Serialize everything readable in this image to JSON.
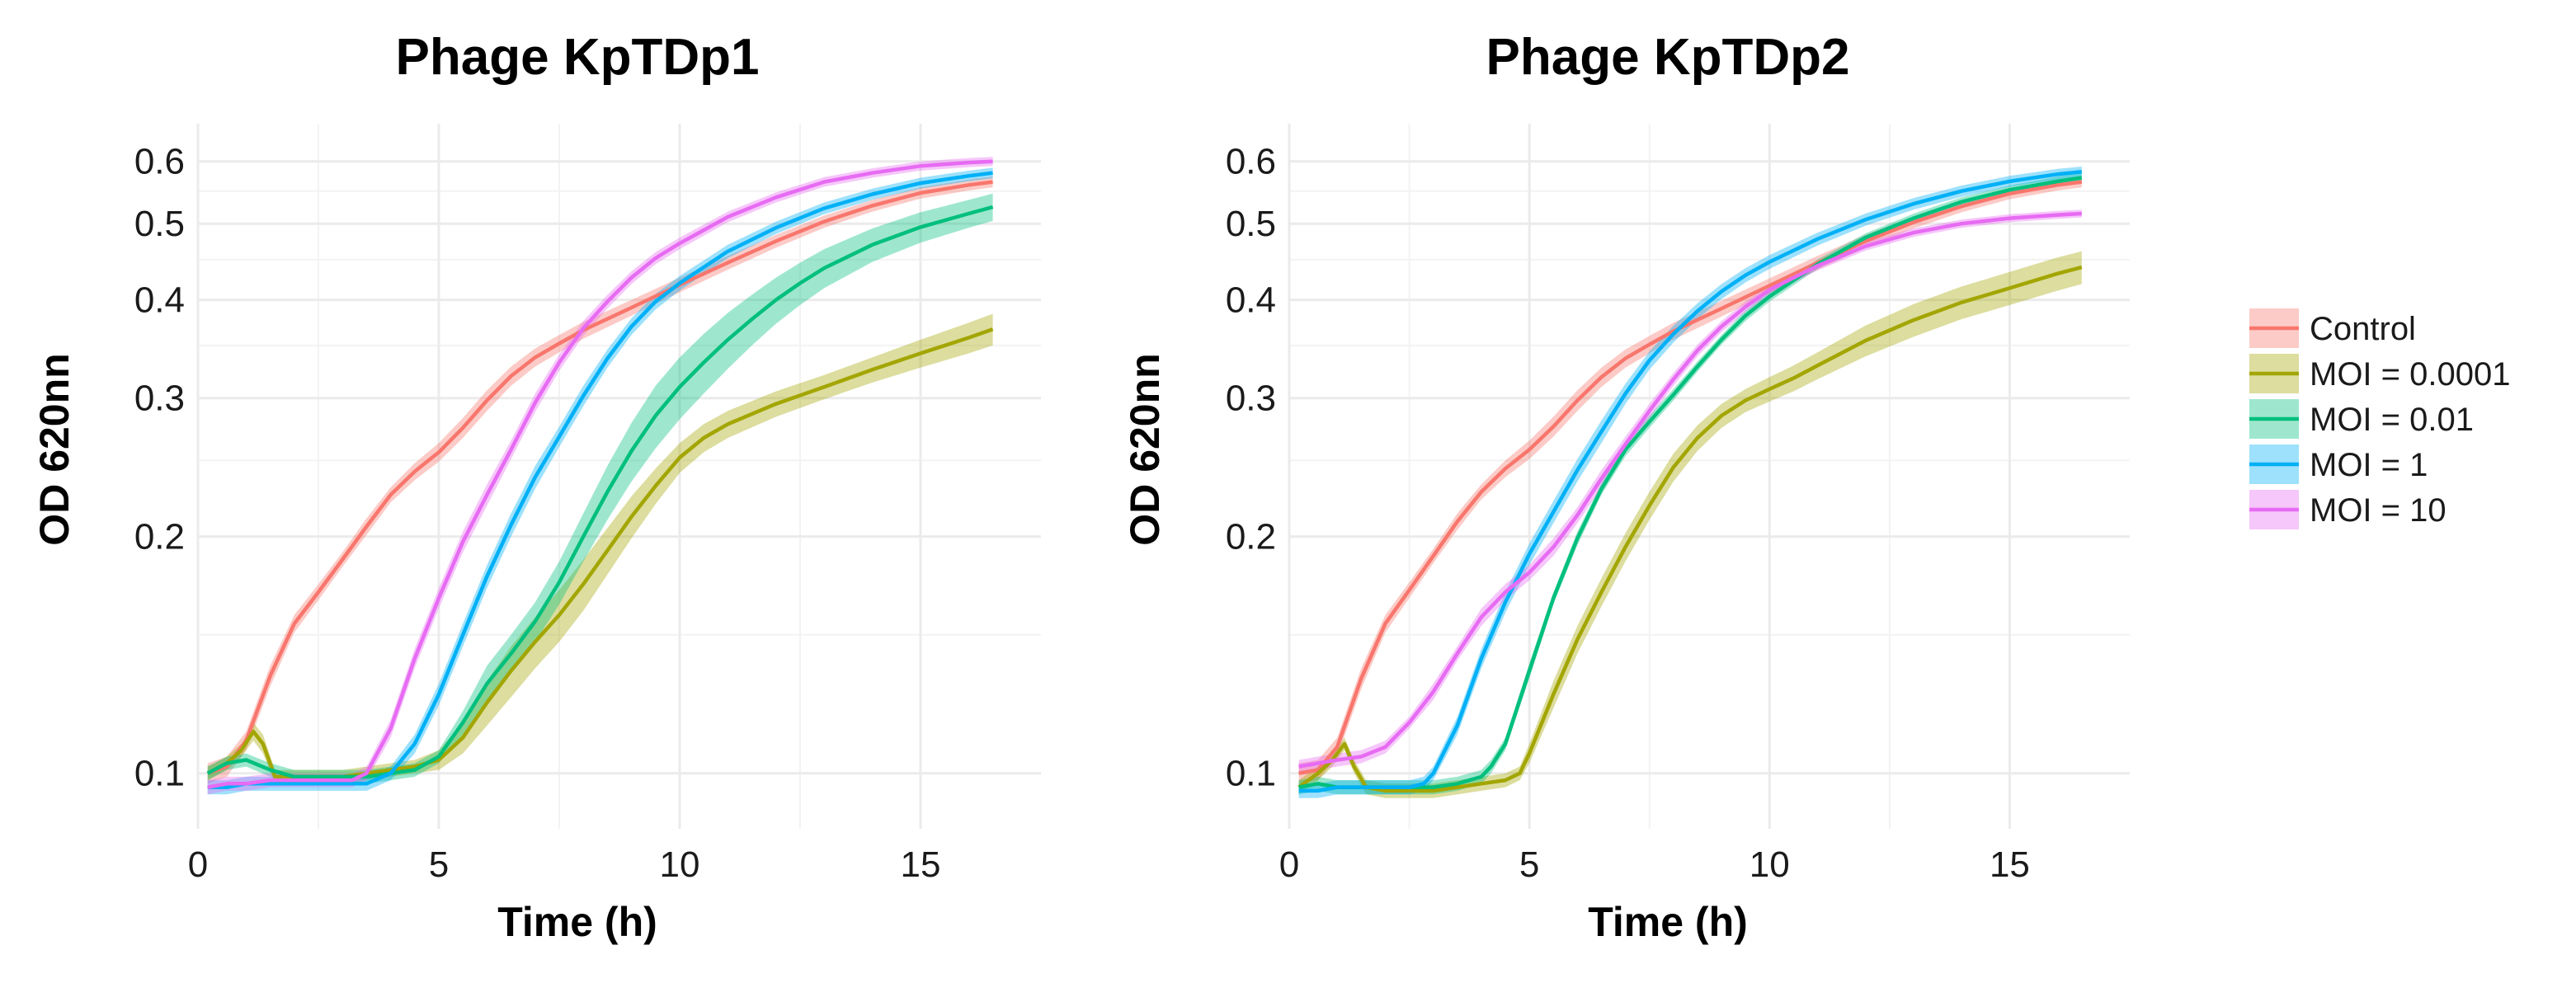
{
  "chart_data": [
    {
      "type": "line",
      "title": "Phage KpTDp1",
      "xlabel": "Time (h)",
      "ylabel": "OD 620nn",
      "xlim": [
        0,
        17.5
      ],
      "ylim": [
        0.085,
        0.67
      ],
      "y_scale": "log",
      "x_ticks": [
        "0",
        "5",
        "10",
        "15"
      ],
      "y_ticks": [
        "0.1",
        "0.2",
        "0.3",
        "0.4",
        "0.5",
        "0.6"
      ],
      "series": [
        {
          "name": "Control",
          "color": "#F8766D",
          "x": [
            0.2,
            0.6,
            1,
            1.5,
            2,
            2.5,
            3,
            3.5,
            4,
            4.5,
            5,
            5.5,
            6,
            6.5,
            7,
            7.5,
            8,
            9,
            10,
            11,
            12,
            13,
            14,
            15,
            16,
            16.5
          ],
          "y": [
            0.1,
            0.102,
            0.11,
            0.133,
            0.155,
            0.17,
            0.187,
            0.206,
            0.226,
            0.242,
            0.256,
            0.275,
            0.298,
            0.32,
            0.338,
            0.352,
            0.366,
            0.391,
            0.418,
            0.446,
            0.475,
            0.503,
            0.527,
            0.547,
            0.56,
            0.565
          ],
          "band": [
            0.003,
            0.003,
            0.003,
            0.004,
            0.004,
            0.004,
            0.004,
            0.005,
            0.005,
            0.006,
            0.007,
            0.008,
            0.009,
            0.009,
            0.009,
            0.009,
            0.009,
            0.009,
            0.009,
            0.009,
            0.009,
            0.009,
            0.009,
            0.009,
            0.009,
            0.009
          ]
        },
        {
          "name": "MOI = 0.0001",
          "color": "#A3A500",
          "x": [
            0.2,
            0.6,
            0.9,
            1.15,
            1.35,
            1.6,
            2,
            2.5,
            3,
            3.5,
            4,
            4.5,
            5,
            5.5,
            6,
            6.5,
            7,
            7.5,
            8,
            8.5,
            9,
            9.5,
            10,
            10.5,
            11,
            12,
            13,
            14,
            15,
            16,
            16.5
          ],
          "y": [
            0.1,
            0.103,
            0.107,
            0.113,
            0.109,
            0.099,
            0.099,
            0.099,
            0.099,
            0.1,
            0.101,
            0.102,
            0.104,
            0.111,
            0.123,
            0.135,
            0.147,
            0.159,
            0.174,
            0.192,
            0.212,
            0.232,
            0.252,
            0.267,
            0.278,
            0.295,
            0.31,
            0.326,
            0.342,
            0.358,
            0.367
          ],
          "band": [
            0.002,
            0.002,
            0.002,
            0.003,
            0.003,
            0.002,
            0.002,
            0.002,
            0.002,
            0.002,
            0.002,
            0.002,
            0.003,
            0.005,
            0.008,
            0.01,
            0.011,
            0.012,
            0.013,
            0.013,
            0.013,
            0.012,
            0.011,
            0.011,
            0.011,
            0.011,
            0.011,
            0.012,
            0.014,
            0.016,
            0.017
          ]
        },
        {
          "name": "MOI = 0.01",
          "color": "#00BF7D",
          "x": [
            0.2,
            0.6,
            1,
            1.5,
            2,
            2.5,
            3,
            3.5,
            4,
            4.5,
            5,
            5.5,
            6,
            6.5,
            7,
            7.5,
            8,
            8.5,
            9,
            9.5,
            10,
            10.5,
            11,
            11.5,
            12,
            12.5,
            13,
            14,
            15,
            16,
            16.5
          ],
          "y": [
            0.1,
            0.103,
            0.104,
            0.101,
            0.099,
            0.099,
            0.099,
            0.099,
            0.1,
            0.101,
            0.105,
            0.116,
            0.13,
            0.142,
            0.156,
            0.175,
            0.2,
            0.228,
            0.257,
            0.285,
            0.31,
            0.333,
            0.356,
            0.378,
            0.4,
            0.42,
            0.439,
            0.47,
            0.495,
            0.515,
            0.525
          ],
          "band": [
            0.002,
            0.002,
            0.002,
            0.002,
            0.002,
            0.002,
            0.002,
            0.002,
            0.002,
            0.002,
            0.002,
            0.004,
            0.007,
            0.008,
            0.009,
            0.011,
            0.014,
            0.018,
            0.022,
            0.026,
            0.028,
            0.029,
            0.029,
            0.028,
            0.027,
            0.026,
            0.025,
            0.023,
            0.022,
            0.021,
            0.021
          ]
        },
        {
          "name": "MOI = 1",
          "color": "#00B0F6",
          "x": [
            0.2,
            0.6,
            1,
            1.5,
            2,
            2.5,
            3,
            3.5,
            4,
            4.5,
            5,
            5.5,
            6,
            6.5,
            7,
            7.5,
            8,
            8.5,
            9,
            9.5,
            10,
            11,
            12,
            13,
            14,
            15,
            16,
            16.5
          ],
          "y": [
            0.096,
            0.096,
            0.097,
            0.097,
            0.097,
            0.097,
            0.097,
            0.097,
            0.1,
            0.109,
            0.126,
            0.15,
            0.178,
            0.207,
            0.238,
            0.268,
            0.302,
            0.337,
            0.37,
            0.398,
            0.42,
            0.461,
            0.494,
            0.523,
            0.545,
            0.563,
            0.575,
            0.58
          ],
          "band": [
            0.002,
            0.002,
            0.002,
            0.002,
            0.002,
            0.002,
            0.002,
            0.002,
            0.002,
            0.003,
            0.004,
            0.005,
            0.006,
            0.007,
            0.008,
            0.008,
            0.009,
            0.009,
            0.009,
            0.009,
            0.009,
            0.009,
            0.009,
            0.009,
            0.009,
            0.009,
            0.009,
            0.009
          ]
        },
        {
          "name": "MOI = 10",
          "color": "#E76BF3",
          "x": [
            0.2,
            0.6,
            1,
            1.5,
            2,
            2.5,
            3,
            3.2,
            3.5,
            4,
            4.5,
            5,
            5.5,
            6,
            6.5,
            7,
            7.5,
            8,
            8.5,
            9,
            9.5,
            10,
            11,
            12,
            13,
            14,
            15,
            16,
            16.5
          ],
          "y": [
            0.096,
            0.097,
            0.097,
            0.098,
            0.098,
            0.098,
            0.098,
            0.098,
            0.1,
            0.114,
            0.14,
            0.167,
            0.197,
            0.226,
            0.258,
            0.296,
            0.333,
            0.368,
            0.398,
            0.427,
            0.452,
            0.472,
            0.51,
            0.54,
            0.565,
            0.58,
            0.592,
            0.598,
            0.6
          ],
          "band": [
            0.002,
            0.002,
            0.002,
            0.002,
            0.002,
            0.002,
            0.002,
            0.002,
            0.002,
            0.003,
            0.004,
            0.005,
            0.006,
            0.007,
            0.007,
            0.008,
            0.008,
            0.008,
            0.008,
            0.008,
            0.008,
            0.008,
            0.008,
            0.008,
            0.008,
            0.008,
            0.008,
            0.008,
            0.008
          ]
        }
      ]
    },
    {
      "type": "line",
      "title": "Phage KpTDp2",
      "xlabel": "Time (h)",
      "ylabel": "OD 620nn",
      "xlim": [
        0,
        17.5
      ],
      "ylim": [
        0.085,
        0.67
      ],
      "y_scale": "log",
      "x_ticks": [
        "0",
        "5",
        "10",
        "15"
      ],
      "y_ticks": [
        "0.1",
        "0.2",
        "0.3",
        "0.4",
        "0.5",
        "0.6"
      ],
      "series": [
        {
          "name": "Control",
          "color": "#F8766D",
          "x": [
            0.2,
            0.6,
            1,
            1.5,
            2,
            2.5,
            3,
            3.5,
            4,
            4.5,
            5,
            5.5,
            6,
            6.5,
            7,
            7.5,
            8,
            9,
            10,
            11,
            12,
            13,
            14,
            15,
            16,
            16.5
          ],
          "y": [
            0.1,
            0.101,
            0.108,
            0.132,
            0.155,
            0.171,
            0.189,
            0.209,
            0.228,
            0.244,
            0.258,
            0.276,
            0.298,
            0.319,
            0.337,
            0.351,
            0.365,
            0.39,
            0.417,
            0.446,
            0.475,
            0.502,
            0.526,
            0.546,
            0.56,
            0.565
          ],
          "band": [
            0.003,
            0.003,
            0.003,
            0.004,
            0.004,
            0.004,
            0.004,
            0.005,
            0.005,
            0.006,
            0.007,
            0.008,
            0.009,
            0.009,
            0.009,
            0.009,
            0.009,
            0.009,
            0.009,
            0.009,
            0.009,
            0.009,
            0.009,
            0.009,
            0.009,
            0.009
          ]
        },
        {
          "name": "MOI = 0.0001",
          "color": "#A3A500",
          "x": [
            0.2,
            0.6,
            0.9,
            1.15,
            1.35,
            1.6,
            2,
            2.5,
            3,
            3.5,
            4,
            4.5,
            4.8,
            5,
            5.5,
            6,
            6.5,
            7,
            7.5,
            8,
            8.5,
            9,
            9.5,
            10,
            10.5,
            11,
            12,
            13,
            14,
            15,
            16,
            16.5
          ],
          "y": [
            0.096,
            0.1,
            0.104,
            0.109,
            0.102,
            0.096,
            0.095,
            0.095,
            0.095,
            0.096,
            0.097,
            0.098,
            0.1,
            0.106,
            0.126,
            0.148,
            0.17,
            0.194,
            0.219,
            0.245,
            0.267,
            0.285,
            0.298,
            0.308,
            0.318,
            0.33,
            0.355,
            0.377,
            0.397,
            0.414,
            0.432,
            0.44
          ],
          "band": [
            0.002,
            0.002,
            0.002,
            0.002,
            0.002,
            0.002,
            0.002,
            0.002,
            0.002,
            0.002,
            0.002,
            0.002,
            0.002,
            0.003,
            0.005,
            0.006,
            0.007,
            0.008,
            0.009,
            0.01,
            0.01,
            0.01,
            0.01,
            0.011,
            0.012,
            0.013,
            0.016,
            0.018,
            0.019,
            0.02,
            0.021,
            0.021
          ]
        },
        {
          "name": "MOI = 0.01",
          "color": "#00BF7D",
          "x": [
            0.2,
            0.6,
            1,
            1.5,
            2,
            2.5,
            3,
            3.5,
            4,
            4.2,
            4.5,
            5,
            5.5,
            6,
            6.5,
            7,
            7.5,
            8,
            8.5,
            9,
            9.5,
            10,
            11,
            12,
            13,
            14,
            15,
            16,
            16.5
          ],
          "y": [
            0.096,
            0.097,
            0.096,
            0.096,
            0.096,
            0.096,
            0.096,
            0.097,
            0.099,
            0.102,
            0.109,
            0.135,
            0.167,
            0.199,
            0.23,
            0.258,
            0.28,
            0.303,
            0.329,
            0.356,
            0.382,
            0.404,
            0.444,
            0.48,
            0.508,
            0.533,
            0.552,
            0.566,
            0.572
          ],
          "band": [
            0.002,
            0.002,
            0.002,
            0.002,
            0.002,
            0.002,
            0.002,
            0.002,
            0.002,
            0.002,
            0.002,
            0.003,
            0.003,
            0.004,
            0.004,
            0.005,
            0.005,
            0.005,
            0.005,
            0.005,
            0.006,
            0.006,
            0.006,
            0.006,
            0.007,
            0.007,
            0.007,
            0.008,
            0.008
          ]
        },
        {
          "name": "MOI = 1",
          "color": "#00B0F6",
          "x": [
            0.2,
            0.6,
            1,
            1.5,
            2,
            2.5,
            2.8,
            3,
            3.5,
            4,
            4.5,
            5,
            5.5,
            6,
            6.5,
            7,
            7.5,
            8,
            8.5,
            9,
            9.5,
            10,
            11,
            12,
            13,
            14,
            15,
            16,
            16.5
          ],
          "y": [
            0.095,
            0.095,
            0.096,
            0.096,
            0.096,
            0.096,
            0.097,
            0.1,
            0.115,
            0.14,
            0.165,
            0.19,
            0.215,
            0.243,
            0.272,
            0.304,
            0.335,
            0.362,
            0.387,
            0.41,
            0.43,
            0.447,
            0.478,
            0.506,
            0.53,
            0.55,
            0.566,
            0.578,
            0.582
          ],
          "band": [
            0.002,
            0.002,
            0.002,
            0.002,
            0.002,
            0.002,
            0.002,
            0.002,
            0.003,
            0.004,
            0.005,
            0.006,
            0.007,
            0.008,
            0.009,
            0.009,
            0.009,
            0.009,
            0.009,
            0.009,
            0.009,
            0.009,
            0.009,
            0.009,
            0.009,
            0.009,
            0.009,
            0.009,
            0.009
          ]
        },
        {
          "name": "MOI = 10",
          "color": "#E76BF3",
          "x": [
            0.2,
            0.6,
            1,
            1.5,
            2,
            2.5,
            3,
            3.5,
            4,
            4.5,
            5,
            5.5,
            6,
            6.5,
            7,
            7.5,
            8,
            8.5,
            9,
            9.5,
            10,
            11,
            12,
            13,
            14,
            15,
            16,
            16.5
          ],
          "y": [
            0.102,
            0.103,
            0.104,
            0.105,
            0.108,
            0.116,
            0.127,
            0.142,
            0.158,
            0.17,
            0.18,
            0.194,
            0.213,
            0.237,
            0.262,
            0.289,
            0.317,
            0.345,
            0.37,
            0.392,
            0.412,
            0.442,
            0.468,
            0.487,
            0.5,
            0.508,
            0.513,
            0.515
          ],
          "band": [
            0.002,
            0.002,
            0.002,
            0.002,
            0.002,
            0.002,
            0.003,
            0.003,
            0.004,
            0.004,
            0.004,
            0.005,
            0.005,
            0.006,
            0.006,
            0.006,
            0.006,
            0.006,
            0.006,
            0.006,
            0.006,
            0.006,
            0.006,
            0.006,
            0.006,
            0.006,
            0.006,
            0.006
          ]
        }
      ]
    }
  ],
  "legend": {
    "items": [
      {
        "label": "Control",
        "color": "#F8766D"
      },
      {
        "label": "MOI = 0.0001",
        "color": "#A3A500"
      },
      {
        "label": "MOI = 0.01",
        "color": "#00BF7D"
      },
      {
        "label": "MOI = 1",
        "color": "#00B0F6"
      },
      {
        "label": "MOI = 10",
        "color": "#E76BF3"
      }
    ]
  }
}
